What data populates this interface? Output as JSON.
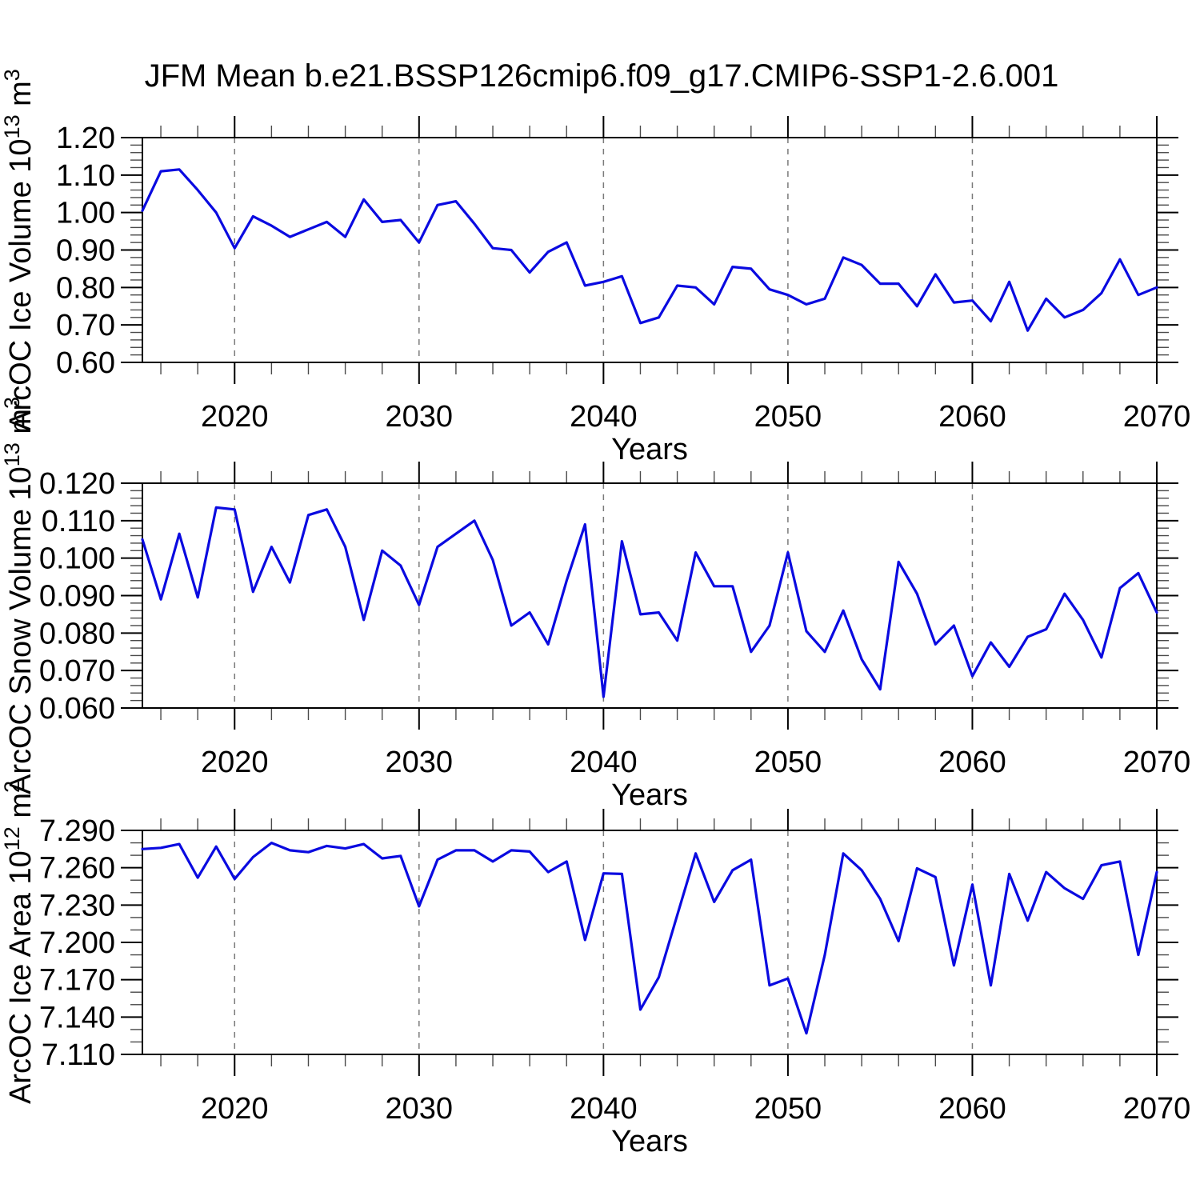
{
  "title": "JFM Mean b.e21.BSSP126cmip6.f09_g17.CMIP6-SSP1-2.6.001",
  "colors": {
    "line": "#0a0ae0",
    "grid": "#7a7a7a",
    "text": "#000000"
  },
  "years": [
    2015,
    2016,
    2017,
    2018,
    2019,
    2020,
    2021,
    2022,
    2023,
    2024,
    2025,
    2026,
    2027,
    2028,
    2029,
    2030,
    2031,
    2032,
    2033,
    2034,
    2035,
    2036,
    2037,
    2038,
    2039,
    2040,
    2041,
    2042,
    2043,
    2044,
    2045,
    2046,
    2047,
    2048,
    2049,
    2050,
    2051,
    2052,
    2053,
    2054,
    2055,
    2056,
    2057,
    2058,
    2059,
    2060,
    2061,
    2062,
    2063,
    2064,
    2065,
    2066,
    2067,
    2068,
    2069,
    2070
  ],
  "x_axis": {
    "label": "Years",
    "lim": [
      2015,
      2070
    ],
    "major_ticks": [
      2020,
      2030,
      2040,
      2050,
      2060,
      2070
    ],
    "tick_labels": [
      "2020",
      "2030",
      "2040",
      "2050",
      "2060",
      "2070"
    ],
    "minor_step": 2,
    "gridlines": [
      2020,
      2030,
      2040,
      2050,
      2060
    ],
    "grid_on": true
  },
  "chart_data": [
    {
      "type": "line",
      "name": "ice-volume",
      "ylabel": "ArcOC Ice Volume 10¹³ m³",
      "ylabel_parts": [
        {
          "t": "ArcOC Ice Volume 10",
          "sup": false
        },
        {
          "t": "13",
          "sup": true
        },
        {
          "t": " m",
          "sup": false
        },
        {
          "t": "3",
          "sup": true
        }
      ],
      "ylim": [
        0.6,
        1.2
      ],
      "y_major_step": 0.1,
      "y_minor_step": 0.02,
      "y_decimals": 2,
      "y_tick_labels": [
        "0.60",
        "0.70",
        "0.80",
        "0.90",
        "1.00",
        "1.10",
        "1.20"
      ],
      "values": [
        1.005,
        1.11,
        1.115,
        1.06,
        1.0,
        0.905,
        0.99,
        0.965,
        0.935,
        0.955,
        0.975,
        0.935,
        1.035,
        0.975,
        0.98,
        0.92,
        1.02,
        1.03,
        0.97,
        0.905,
        0.9,
        0.84,
        0.895,
        0.92,
        0.805,
        0.815,
        0.83,
        0.705,
        0.72,
        0.805,
        0.8,
        0.755,
        0.855,
        0.85,
        0.795,
        0.78,
        0.755,
        0.77,
        0.88,
        0.86,
        0.81,
        0.81,
        0.75,
        0.835,
        0.76,
        0.765,
        0.71,
        0.815,
        0.685,
        0.77,
        0.72,
        0.74,
        0.785,
        0.875,
        0.78,
        0.8
      ]
    },
    {
      "type": "line",
      "name": "snow-volume",
      "ylabel": "ArcOC Snow Volume 10¹³ m³",
      "ylabel_parts": [
        {
          "t": "ArcOC Snow Volume 10",
          "sup": false
        },
        {
          "t": "13",
          "sup": true
        },
        {
          "t": " m",
          "sup": false
        },
        {
          "t": "3",
          "sup": true
        }
      ],
      "ylim": [
        0.06,
        0.12
      ],
      "y_major_step": 0.01,
      "y_minor_step": 0.002,
      "y_decimals": 3,
      "y_tick_labels": [
        "0.060",
        "0.070",
        "0.080",
        "0.090",
        "0.100",
        "0.110",
        "0.120"
      ],
      "values": [
        0.105,
        0.089,
        0.1065,
        0.0895,
        0.1135,
        0.113,
        0.091,
        0.103,
        0.0935,
        0.1115,
        0.113,
        0.103,
        0.0835,
        0.102,
        0.098,
        0.0875,
        0.103,
        0.1065,
        0.11,
        0.0995,
        0.082,
        0.0855,
        0.077,
        0.094,
        0.109,
        0.063,
        0.1045,
        0.085,
        0.0855,
        0.078,
        0.1015,
        0.0925,
        0.0925,
        0.075,
        0.082,
        0.1015,
        0.0805,
        0.075,
        0.086,
        0.073,
        0.065,
        0.099,
        0.0905,
        0.077,
        0.082,
        0.0685,
        0.0775,
        0.071,
        0.079,
        0.081,
        0.0905,
        0.0835,
        0.0735,
        0.092,
        0.096,
        0.0855
      ]
    },
    {
      "type": "line",
      "name": "ice-area",
      "ylabel": "ArcOC Ice Area 10¹² m²",
      "ylabel_parts": [
        {
          "t": "ArcOC Ice Area 10",
          "sup": false
        },
        {
          "t": "12",
          "sup": true
        },
        {
          "t": " m",
          "sup": false
        },
        {
          "t": "2",
          "sup": true
        }
      ],
      "ylim": [
        7.11,
        7.29
      ],
      "y_major_step": 0.03,
      "y_minor_step": 0.01,
      "y_decimals": 3,
      "y_tick_labels": [
        "7.110",
        "7.140",
        "7.170",
        "7.200",
        "7.230",
        "7.260",
        "7.290"
      ],
      "values": [
        7.275,
        7.276,
        7.279,
        7.252,
        7.277,
        7.251,
        7.2685,
        7.28,
        7.274,
        7.2725,
        7.2775,
        7.2755,
        7.279,
        7.2675,
        7.2695,
        7.229,
        7.2665,
        7.274,
        7.274,
        7.265,
        7.274,
        7.273,
        7.2565,
        7.265,
        7.202,
        7.2555,
        7.255,
        7.146,
        7.172,
        7.222,
        7.2715,
        7.2325,
        7.258,
        7.2665,
        7.1655,
        7.171,
        7.127,
        7.19,
        7.2715,
        7.258,
        7.235,
        7.201,
        7.2595,
        7.2525,
        7.1815,
        7.2465,
        7.1655,
        7.255,
        7.2175,
        7.2565,
        7.2435,
        7.235,
        7.262,
        7.265,
        7.19,
        7.2565
      ]
    }
  ]
}
